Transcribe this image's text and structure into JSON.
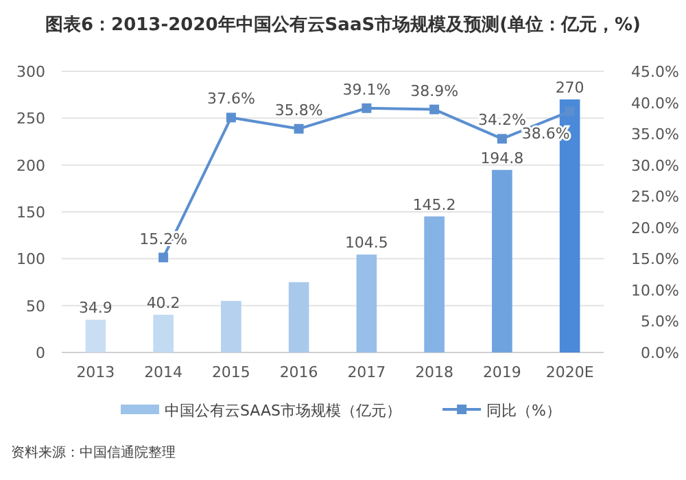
{
  "chart_data": {
    "type": "bar",
    "title": "图表6：2013-2020年中国公有云SaaS市场规模及预测(单位：亿元，%)",
    "categories": [
      "2013",
      "2014",
      "2015",
      "2016",
      "2017",
      "2018",
      "2019",
      "2020E"
    ],
    "series": [
      {
        "name": "中国公有云SAAS市场规模（亿元）",
        "type": "bar",
        "color": "#9dc3ea",
        "colors": [
          "#c9def3",
          "#c2daf2",
          "#b5d1ef",
          "#a8c9ec",
          "#98bfe9",
          "#86b3e5",
          "#6fa3e0",
          "#4a8ad8"
        ],
        "values": [
          34.9,
          40.2,
          55,
          75,
          104.5,
          145.2,
          194.8,
          270
        ],
        "value_labels": [
          "34.9",
          "40.2",
          null,
          null,
          "104.5",
          "145.2",
          "194.8",
          "270"
        ]
      },
      {
        "name": "同比（%）",
        "type": "line",
        "axis": "y2",
        "color": "#5b8fd0",
        "marker": "square",
        "values": [
          null,
          15.2,
          37.6,
          35.8,
          39.1,
          38.9,
          34.2,
          38.6
        ],
        "value_labels": [
          null,
          "15.2%",
          "37.6%",
          "35.8%",
          "39.1%",
          "38.9%",
          "34.2%",
          "38.6%"
        ]
      }
    ],
    "ylim": [
      0,
      300
    ],
    "yticks": [
      0,
      50,
      100,
      150,
      200,
      250,
      300
    ],
    "y2lim": [
      0,
      45
    ],
    "y2ticks": [
      {
        "value": 0,
        "label": "0.0%"
      },
      {
        "value": 5,
        "label": "5.0%"
      },
      {
        "value": 10,
        "label": "10.0%"
      },
      {
        "value": 15,
        "label": "15.0%"
      },
      {
        "value": 20,
        "label": "20.0%"
      },
      {
        "value": 25,
        "label": "25.0%"
      },
      {
        "value": 30,
        "label": "30.0%"
      },
      {
        "value": 35,
        "label": "35.0%"
      },
      {
        "value": 40,
        "label": "40.0%"
      },
      {
        "value": 45,
        "label": "45.0%"
      }
    ],
    "grid": "y",
    "legend": "bottom",
    "annotations": [
      "资料来源：中国信通院整理"
    ]
  }
}
